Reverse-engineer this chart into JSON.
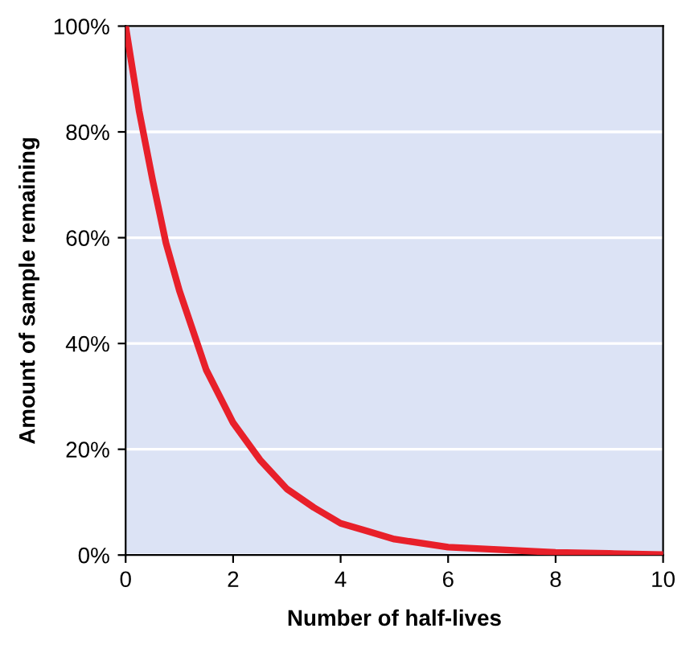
{
  "chart_data": {
    "type": "line",
    "xlabel": "Number of half-lives",
    "ylabel": "Amount of sample remaining",
    "x": [
      0,
      0.25,
      0.5,
      0.75,
      1,
      1.5,
      2,
      2.5,
      3,
      3.5,
      4,
      4.5,
      5,
      6,
      7,
      8,
      9,
      10
    ],
    "series": [
      {
        "color": "#e8202a",
        "values": [
          100,
          84,
          71,
          59,
          50,
          35,
          25,
          18,
          12.5,
          9,
          6,
          4.5,
          3,
          1.5,
          1,
          0.5,
          0.3,
          0.1
        ]
      }
    ],
    "xlim": [
      0,
      10
    ],
    "ylim": [
      0,
      100
    ],
    "xticks": [
      0,
      2,
      4,
      6,
      8,
      10
    ],
    "yticks": [
      {
        "value": 0,
        "label": "0%"
      },
      {
        "value": 20,
        "label": "20%"
      },
      {
        "value": 40,
        "label": "40%"
      },
      {
        "value": 60,
        "label": "60%"
      },
      {
        "value": 80,
        "label": "80%"
      },
      {
        "value": 100,
        "label": "100%"
      }
    ],
    "grid": "y",
    "marker": "none",
    "line_style": "solid"
  }
}
